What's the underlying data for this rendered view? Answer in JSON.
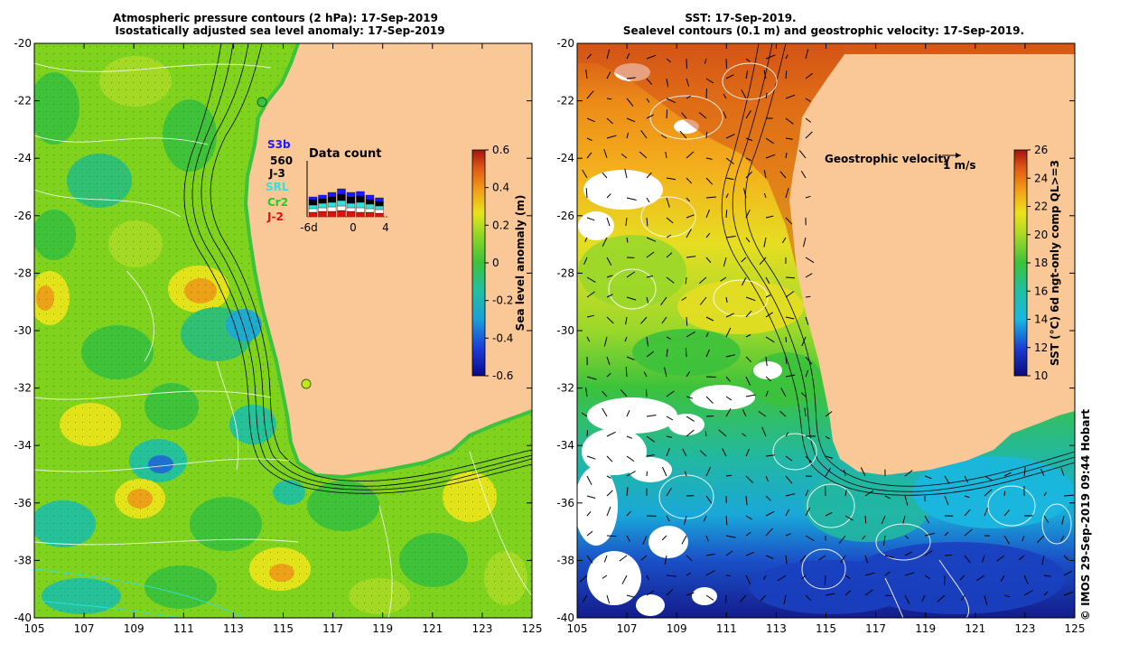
{
  "left_panel": {
    "title_line1": "Atmospheric pressure contours (2 hPa): 17-Sep-2019",
    "title_line2": "Isostatically adjusted sea level anomaly: 17-Sep-2019",
    "colorbar": {
      "label": "Sea level anomaly (m)",
      "ticks": [
        "0.6",
        "0.4",
        "0.2",
        "0",
        "-0.2",
        "-0.4",
        "-0.6"
      ],
      "range": [
        -0.6,
        0.6
      ]
    },
    "data_count": {
      "title": "Data count",
      "axis_labels": [
        "-6d",
        "0",
        "4"
      ]
    },
    "satellites": [
      {
        "name": "S3b",
        "color": "#1a1aff"
      },
      {
        "name": "560",
        "color": "#000000"
      },
      {
        "name": "J-3",
        "color": "#000000"
      },
      {
        "name": "SRL",
        "color": "#33e0e0"
      },
      {
        "name": "Cr2",
        "color": "#22cc22"
      },
      {
        "name": "J-2",
        "color": "#e01010"
      }
    ]
  },
  "right_panel": {
    "title_line1": "SST: 17-Sep-2019.",
    "title_line2": "Sealevel contours (0.1 m) and geostrophic velocity: 17-Sep-2019.",
    "velocity_label": "Geostrophic velocity",
    "velocity_scale": "1 m/s",
    "colorbar": {
      "label": "SST (°C) 6d ngt-only comp QL>=3",
      "ticks": [
        "26",
        "24",
        "22",
        "20",
        "18",
        "16",
        "14",
        "12",
        "10"
      ],
      "range": [
        10,
        26
      ]
    }
  },
  "axes": {
    "lat_ticks": [
      "-20",
      "-22",
      "-24",
      "-26",
      "-28",
      "-30",
      "-32",
      "-34",
      "-36",
      "-38",
      "-40"
    ],
    "lon_ticks": [
      "105",
      "107",
      "109",
      "111",
      "113",
      "115",
      "117",
      "119",
      "121",
      "123",
      "125"
    ]
  },
  "credit": "© IMOS 29-Sep-2019 09:44 Hobart",
  "colors": {
    "land": "#fac796",
    "sla_base": "#7fd21e",
    "sst_cold": "#1a3ab0"
  }
}
